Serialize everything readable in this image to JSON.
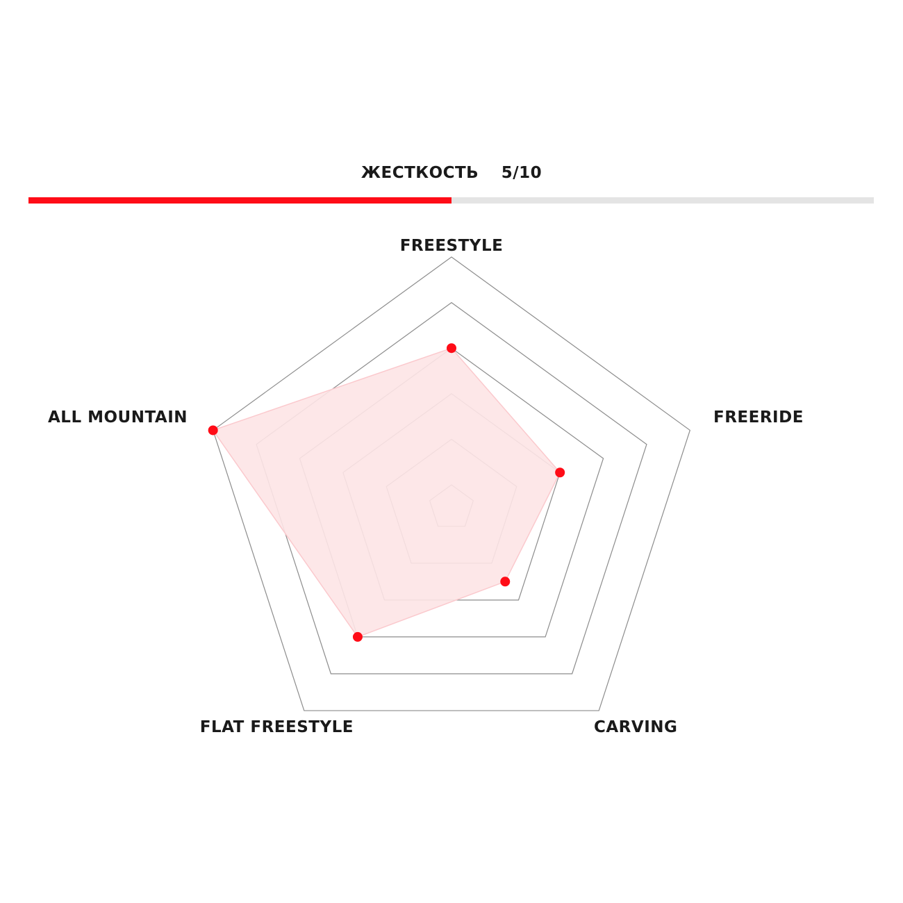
{
  "stiffness": {
    "label": "ЖЕСТКОСТЬ",
    "value_text": "5/10",
    "value": 5,
    "max": 10
  },
  "colors": {
    "accent": "#ff0c17",
    "track": "#e4e4e4",
    "fill": "#fde4e6",
    "grid": "#8c8c8c"
  },
  "chart_data": {
    "type": "radar",
    "categories": [
      "FREESTYLE",
      "FREERIDE",
      "CARVING",
      "FLAT FREESTYLE",
      "ALL MOUNTAIN"
    ],
    "values": [
      6,
      4,
      3,
      6,
      10
    ],
    "range": [
      0,
      10
    ],
    "rings": [
      0,
      2,
      4,
      6,
      8,
      10
    ]
  }
}
